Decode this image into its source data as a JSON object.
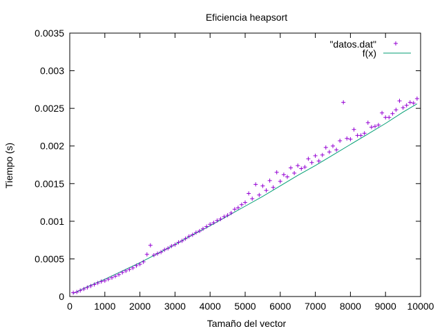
{
  "chart_data": {
    "type": "scatter",
    "title": "Eficiencia heapsort",
    "xlabel": "Tamaño del vector",
    "ylabel": "Tiempo (s)",
    "xlim": [
      0,
      10000
    ],
    "ylim": [
      0,
      0.0035
    ],
    "x_ticks": [
      0,
      1000,
      2000,
      3000,
      4000,
      5000,
      6000,
      7000,
      8000,
      9000,
      10000
    ],
    "y_ticks": [
      0,
      0.0005,
      0.001,
      0.0015,
      0.002,
      0.0025,
      0.003,
      0.0035
    ],
    "x_tick_labels": [
      "0",
      "1000",
      "2000",
      "3000",
      "4000",
      "5000",
      "6000",
      "7000",
      "8000",
      "9000",
      "10000"
    ],
    "y_tick_labels": [
      "0",
      "0.0005",
      "0.001",
      "0.0015",
      "0.002",
      "0.0025",
      "0.003",
      "0.0035"
    ],
    "grid": false,
    "legend_position": "top-right",
    "legend": [
      "\"datos.dat\"",
      "f(x)"
    ],
    "series": [
      {
        "name": "\"datos.dat\"",
        "style": "points",
        "marker": "plus",
        "color": "#9400d3",
        "x": [
          100,
          200,
          300,
          400,
          500,
          600,
          700,
          800,
          900,
          1000,
          1100,
          1200,
          1300,
          1400,
          1500,
          1600,
          1700,
          1800,
          1900,
          2000,
          2100,
          2200,
          2300,
          2400,
          2500,
          2600,
          2700,
          2800,
          2900,
          3000,
          3100,
          3200,
          3300,
          3400,
          3500,
          3600,
          3700,
          3800,
          3900,
          4000,
          4100,
          4200,
          4300,
          4400,
          4500,
          4600,
          4700,
          4800,
          4900,
          5000,
          5100,
          5200,
          5300,
          5400,
          5500,
          5600,
          5700,
          5800,
          5900,
          6000,
          6100,
          6200,
          6300,
          6400,
          6500,
          6600,
          6700,
          6800,
          6900,
          7000,
          7100,
          7200,
          7300,
          7400,
          7500,
          7600,
          7700,
          7800,
          7900,
          8000,
          8100,
          8200,
          8300,
          8400,
          8500,
          8600,
          8700,
          8800,
          8900,
          9000,
          9100,
          9200,
          9300,
          9400,
          9500,
          9600,
          9700,
          9800,
          9900
        ],
        "y": [
          5e-05,
          6e-05,
          8e-05,
          0.0001,
          0.00012,
          0.00014,
          0.00016,
          0.00018,
          0.0002,
          0.00021,
          0.00023,
          0.00025,
          0.00027,
          0.00029,
          0.00032,
          0.00034,
          0.00036,
          0.00038,
          0.00041,
          0.00043,
          0.00046,
          0.00056,
          0.00068,
          0.00055,
          0.00057,
          0.00059,
          0.00062,
          0.00064,
          0.00067,
          0.00069,
          0.00072,
          0.00074,
          0.00077,
          0.0008,
          0.00082,
          0.00085,
          0.00087,
          0.0009,
          0.00093,
          0.00096,
          0.00098,
          0.00101,
          0.00103,
          0.00106,
          0.00108,
          0.00111,
          0.00116,
          0.00118,
          0.00122,
          0.00125,
          0.00137,
          0.0013,
          0.00149,
          0.00135,
          0.00147,
          0.00141,
          0.00154,
          0.00145,
          0.00165,
          0.00153,
          0.00162,
          0.00159,
          0.00171,
          0.00164,
          0.00174,
          0.0017,
          0.00172,
          0.00183,
          0.00178,
          0.00187,
          0.0018,
          0.00188,
          0.00198,
          0.00192,
          0.002,
          0.00195,
          0.00207,
          0.00258,
          0.0021,
          0.00209,
          0.00222,
          0.00214,
          0.00214,
          0.00217,
          0.00231,
          0.00225,
          0.00226,
          0.00228,
          0.00244,
          0.00238,
          0.00238,
          0.00243,
          0.00248,
          0.0026,
          0.00251,
          0.00254,
          0.00258,
          0.00257,
          0.00263
        ]
      },
      {
        "name": "f(x)",
        "style": "line",
        "color": "#009e73",
        "x": [
          100,
          500,
          1000,
          1500,
          2000,
          2500,
          3000,
          3500,
          4000,
          4500,
          5000,
          5500,
          6000,
          6500,
          7000,
          7500,
          8000,
          8500,
          9000,
          9500,
          9900
        ],
        "y": [
          4e-05,
          0.00013,
          0.00023,
          0.00034,
          0.00045,
          0.00057,
          0.00069,
          0.00082,
          0.00094,
          0.00107,
          0.0012,
          0.00133,
          0.00147,
          0.00161,
          0.00174,
          0.00188,
          0.00202,
          0.00216,
          0.0023,
          0.00245,
          0.00256
        ]
      }
    ]
  }
}
